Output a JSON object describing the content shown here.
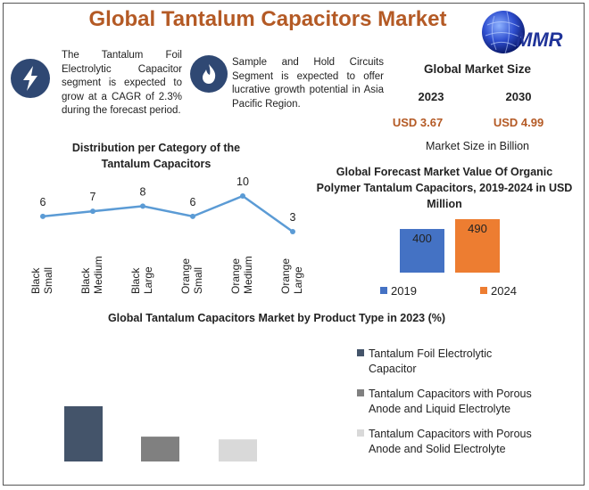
{
  "header": {
    "title": "Global Tantalum Capacitors Market",
    "logo_text": "MMR"
  },
  "highlights": [
    {
      "icon": "lightning-icon",
      "text": "The Tantalum Foil Electrolytic Capacitor segment is expected to grow at a CAGR of 2.3% during the forecast period."
    },
    {
      "icon": "flame-icon",
      "text": "Sample and Hold Circuits Segment is expected to offer lucrative growth potential in Asia Pacific Region."
    }
  ],
  "market_size": {
    "title": "Global Market Size",
    "year_a": "2023",
    "year_b": "2030",
    "value_a": "USD 3.67",
    "value_b": "USD 4.99",
    "unit": "Market Size in Billion"
  },
  "colors": {
    "title": "#b45a25",
    "icon_bg": "#2f4873",
    "line": "#5b9bd5",
    "bar_2019": "#4472c4",
    "bar_2024": "#ed7d31",
    "product_1": "#44546a",
    "product_2": "#808080",
    "product_3": "#d9d9d9"
  },
  "chart_data": [
    {
      "type": "line",
      "title": "Distribution per Category of the Tantalum Capacitors",
      "categories": [
        "Black Small",
        "Black Medium",
        "Black Large",
        "Orange Small",
        "Orange Medium",
        "Orange Large"
      ],
      "category_lines": [
        [
          "Black",
          "Small"
        ],
        [
          "Black",
          "Medium"
        ],
        [
          "Black",
          "Large"
        ],
        [
          "Orange",
          "Small"
        ],
        [
          "Orange",
          "Medium"
        ],
        [
          "Orange",
          "Large"
        ]
      ],
      "values": [
        6,
        7,
        8,
        6,
        10,
        3
      ]
    },
    {
      "type": "bar",
      "title": "Global Forecast Market Value Of Organic Polymer Tantalum Capacitors, 2019-2024 in USD Million",
      "categories": [
        "2019",
        "2024"
      ],
      "values": [
        400,
        490
      ],
      "legend": [
        "2019",
        "2024"
      ]
    },
    {
      "type": "bar",
      "title": "Global Tantalum Capacitors Market by Product Type in 2023 (%)",
      "categories": [
        "Tantalum Foil Electrolytic Capacitor",
        "Tantalum Capacitors with Porous Anode and Liquid Electrolyte",
        "Tantalum Capacitors with Porous Anode and Solid Electrolyte"
      ],
      "legend_lines": [
        [
          "Tantalum Foil Electrolytic",
          "Capacitor"
        ],
        [
          "Tantalum Capacitors with Porous",
          "Anode and Liquid Electrolyte"
        ],
        [
          "Tantalum Capacitors with Porous",
          "Anode and Solid Electrolyte"
        ]
      ],
      "values": [
        100,
        45,
        40
      ],
      "legend_placement": "right"
    }
  ]
}
